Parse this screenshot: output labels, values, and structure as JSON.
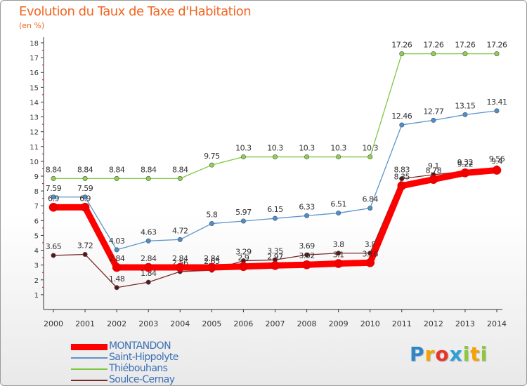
{
  "header": {
    "title": "Evolution du Taux de Taxe d'Habitation",
    "subtitle": "(en %)"
  },
  "logo": {
    "letters": [
      "P",
      "r",
      "o",
      "x",
      "i",
      "t",
      "i"
    ],
    "colors": [
      "#2e86c8",
      "#f4a300",
      "#e8352a",
      "#2ea0d8",
      "#8dc63f",
      "#f4a300",
      "#8dc63f"
    ]
  },
  "chart_data": {
    "type": "line",
    "title": "Evolution du Taux de Taxe d'Habitation",
    "ylabel": "(en %)",
    "x": [
      "2000",
      "2001",
      "2002",
      "2003",
      "2004",
      "2005",
      "2006",
      "2007",
      "2008",
      "2009",
      "2010",
      "2011",
      "2012",
      "2013",
      "2014"
    ],
    "ylim": [
      1,
      18
    ],
    "yticks": [
      1,
      2,
      3,
      4,
      5,
      6,
      7,
      8,
      9,
      10,
      11,
      12,
      13,
      14,
      15,
      16,
      17,
      18
    ],
    "grid": false,
    "legend_position": "bottom-left",
    "series": [
      {
        "name": "Thiébouhans",
        "color": "#7ec843",
        "marker": "#8ed14f",
        "width": 1.3,
        "values": [
          8.84,
          8.84,
          8.84,
          8.84,
          8.84,
          9.75,
          10.3,
          10.3,
          10.3,
          10.3,
          10.3,
          17.26,
          17.26,
          17.26,
          17.26
        ],
        "labels": [
          "8.84",
          "8.84",
          "8.84",
          "8.84",
          "8.84",
          "9.75",
          "10.3",
          "10.3",
          "10.3",
          "10.3",
          "10.3",
          "17.26",
          "17.26",
          "17.26",
          "17.26"
        ]
      },
      {
        "name": "Saint-Hippolyte",
        "color": "#5b93c9",
        "marker": "#4a8fd0",
        "width": 1.3,
        "values": [
          7.59,
          7.59,
          4.03,
          4.63,
          4.72,
          5.8,
          5.97,
          6.15,
          6.33,
          6.51,
          6.84,
          12.46,
          12.77,
          13.15,
          13.41
        ],
        "labels": [
          "7.59",
          "7.59",
          "4.03",
          "4.63",
          "4.72",
          "5.8",
          "5.97",
          "6.15",
          "6.33",
          "6.51",
          "6.84",
          "12.46",
          "12.77",
          "13.15",
          "13.41"
        ]
      },
      {
        "name": "Soulce-Cernay",
        "color": "#7a2a2a",
        "marker": "#5a1616",
        "width": 1.3,
        "values": [
          3.65,
          3.72,
          1.48,
          1.84,
          2.56,
          2.65,
          3.29,
          3.35,
          3.69,
          3.8,
          3.8,
          8.83,
          9.1,
          9.32,
          9.56
        ],
        "labels": [
          "3.65",
          "3.72",
          "1.48",
          "1.84",
          "2.56",
          "2.65",
          "3.29",
          "3.35",
          "3.69",
          "3.8",
          "3.8",
          "8.83",
          "9.1",
          "9.32",
          "9.56"
        ]
      },
      {
        "name": "MONTANDON",
        "color": "#ff0000",
        "marker": "#ee0000",
        "width": 9,
        "values": [
          6.9,
          6.9,
          2.84,
          2.84,
          2.84,
          2.84,
          2.9,
          2.97,
          3.02,
          3.1,
          3.16,
          8.35,
          8.78,
          9.22,
          9.4
        ],
        "labels": [
          "6.9",
          "6.9",
          "2.84",
          "2.84",
          "2.84",
          "2.84",
          "2.9",
          "2.97",
          "3.02",
          "3.1",
          "3.16",
          "8.35",
          "8.78",
          "9.22",
          "9.4"
        ]
      }
    ],
    "legend_order": [
      "MONTANDON",
      "Saint-Hippolyte",
      "Thiébouhans",
      "Soulce-Cernay"
    ]
  }
}
